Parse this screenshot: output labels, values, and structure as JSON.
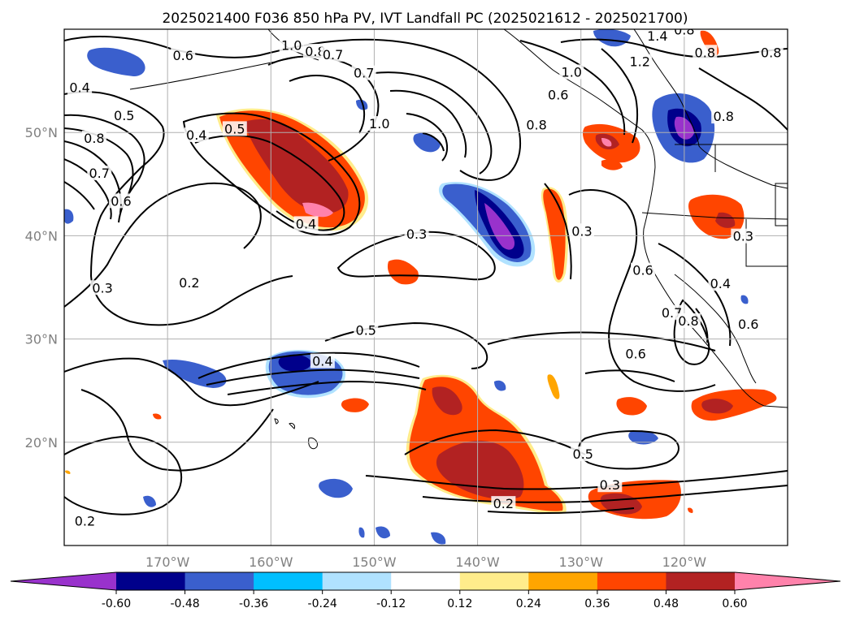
{
  "title": "2025021400 F036 850 hPa PV, IVT Landfall PC (2025021612 - 2025021700)",
  "map": {
    "lon_range": [
      -180,
      -110
    ],
    "lat_range": [
      10,
      60
    ],
    "lon_ticks": [
      {
        "lon": -170,
        "label": "170°W"
      },
      {
        "lon": -160,
        "label": "160°W"
      },
      {
        "lon": -150,
        "label": "150°W"
      },
      {
        "lon": -140,
        "label": "140°W"
      },
      {
        "lon": -130,
        "label": "130°W"
      },
      {
        "lon": -120,
        "label": "120°W"
      }
    ],
    "lat_ticks": [
      {
        "lat": 50,
        "label": "50°N"
      },
      {
        "lat": 40,
        "label": "40°N"
      },
      {
        "lat": 30,
        "label": "30°N"
      },
      {
        "lat": 20,
        "label": "20°N"
      }
    ],
    "grid": true
  },
  "colorbar": {
    "levels": [
      "-0.60",
      "-0.48",
      "-0.36",
      "-0.24",
      "-0.12",
      "0.12",
      "0.24",
      "0.36",
      "0.48",
      "0.60"
    ],
    "colors": [
      "#9932CC",
      "#00008B",
      "#3A5FCD",
      "#00BFFF",
      "#B0E2FF",
      "#FFFFFF",
      "#FFEC8B",
      "#FFA500",
      "#FF4500",
      "#B22222",
      "#FF82AB"
    ],
    "extend": "both"
  },
  "pv_contours": [
    {
      "value": "0.4",
      "lon": -178.5,
      "lat": 54.3
    },
    {
      "value": "0.5",
      "lon": -174.2,
      "lat": 51.6
    },
    {
      "value": "0.8",
      "lon": -177.1,
      "lat": 49.4
    },
    {
      "value": "0.7",
      "lon": -176.6,
      "lat": 46.0
    },
    {
      "value": "0.6",
      "lon": -174.5,
      "lat": 43.3
    },
    {
      "value": "0.3",
      "lon": -176.3,
      "lat": 34.9
    },
    {
      "value": "0.2",
      "lon": -178.0,
      "lat": 12.3
    },
    {
      "value": "0.6",
      "lon": -168.5,
      "lat": 57.4
    },
    {
      "value": "1.0",
      "lon": -158.0,
      "lat": 58.4
    },
    {
      "value": "0.8",
      "lon": -155.7,
      "lat": 57.8
    },
    {
      "value": "0.7",
      "lon": -154.0,
      "lat": 57.5
    },
    {
      "value": "0.7",
      "lon": -151.0,
      "lat": 55.7
    },
    {
      "value": "0.4",
      "lon": -167.2,
      "lat": 49.7
    },
    {
      "value": "0.5",
      "lon": -163.5,
      "lat": 50.3
    },
    {
      "value": "1.0",
      "lon": -149.5,
      "lat": 50.8
    },
    {
      "value": "0.2",
      "lon": -167.9,
      "lat": 35.4
    },
    {
      "value": "0.4",
      "lon": -156.6,
      "lat": 41.1
    },
    {
      "value": "0.3",
      "lon": -145.9,
      "lat": 40.1
    },
    {
      "value": "0.5",
      "lon": -150.8,
      "lat": 30.8
    },
    {
      "value": "0.4",
      "lon": -155.0,
      "lat": 27.8
    },
    {
      "value": "0.8",
      "lon": -134.3,
      "lat": 50.7
    },
    {
      "value": "0.6",
      "lon": -132.2,
      "lat": 53.6
    },
    {
      "value": "1.0",
      "lon": -130.9,
      "lat": 55.8
    },
    {
      "value": "0.3",
      "lon": -129.9,
      "lat": 40.4
    },
    {
      "value": "1.4",
      "lon": -122.6,
      "lat": 59.3
    },
    {
      "value": "1.2",
      "lon": -124.3,
      "lat": 56.8
    },
    {
      "value": "0.8",
      "lon": -120.0,
      "lat": 59.9
    },
    {
      "value": "0.8",
      "lon": -118.0,
      "lat": 57.7
    },
    {
      "value": "0.8",
      "lon": -111.6,
      "lat": 57.7
    },
    {
      "value": "0.8",
      "lon": -116.2,
      "lat": 51.5
    },
    {
      "value": "0.3",
      "lon": -114.3,
      "lat": 39.9
    },
    {
      "value": "0.6",
      "lon": -124.0,
      "lat": 36.6
    },
    {
      "value": "0.4",
      "lon": -116.5,
      "lat": 35.3
    },
    {
      "value": "0.7",
      "lon": -121.2,
      "lat": 32.5
    },
    {
      "value": "0.8",
      "lon": -119.6,
      "lat": 31.7
    },
    {
      "value": "0.6",
      "lon": -124.7,
      "lat": 28.5
    },
    {
      "value": "0.6",
      "lon": -113.8,
      "lat": 31.4
    },
    {
      "value": "0.5",
      "lon": -129.8,
      "lat": 18.8
    },
    {
      "value": "0.3",
      "lon": -127.2,
      "lat": 15.8
    },
    {
      "value": "0.2",
      "lon": -137.5,
      "lat": 14.0
    }
  ]
}
